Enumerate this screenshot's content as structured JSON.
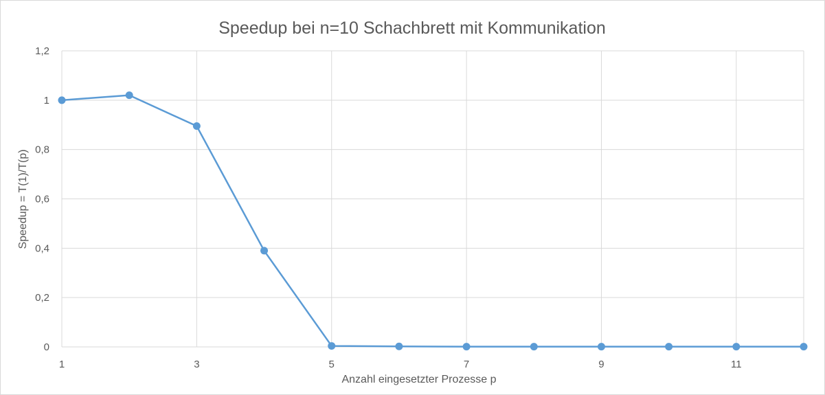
{
  "chart_data": {
    "type": "line",
    "title": "Speedup bei n=10 Schachbrett mit Kommunikation",
    "xlabel": "Anzahl eingesetzter Prozesse p",
    "ylabel": "Speedup = T(1)/T(p)",
    "x": [
      1,
      2,
      3,
      4,
      5,
      6,
      7,
      8,
      9,
      10,
      11,
      12
    ],
    "x_ticks": [
      1,
      3,
      5,
      7,
      9,
      11
    ],
    "x_tick_labels": [
      "1",
      "3",
      "5",
      "7",
      "9",
      "11"
    ],
    "xlim": [
      1,
      12
    ],
    "ylim": [
      0,
      1.2
    ],
    "y_ticks": [
      0,
      0.2,
      0.4,
      0.6,
      0.8,
      1,
      1.2
    ],
    "y_tick_labels": [
      "0",
      "0,2",
      "0,4",
      "0,6",
      "0,8",
      "1",
      "1,2"
    ],
    "grid": true,
    "series": [
      {
        "values": [
          1.0,
          1.02,
          0.895,
          0.39,
          0.004,
          0.002,
          0.001,
          0.001,
          0.001,
          0.001,
          0.001,
          0.001
        ],
        "color": "#5b9bd5"
      }
    ]
  }
}
